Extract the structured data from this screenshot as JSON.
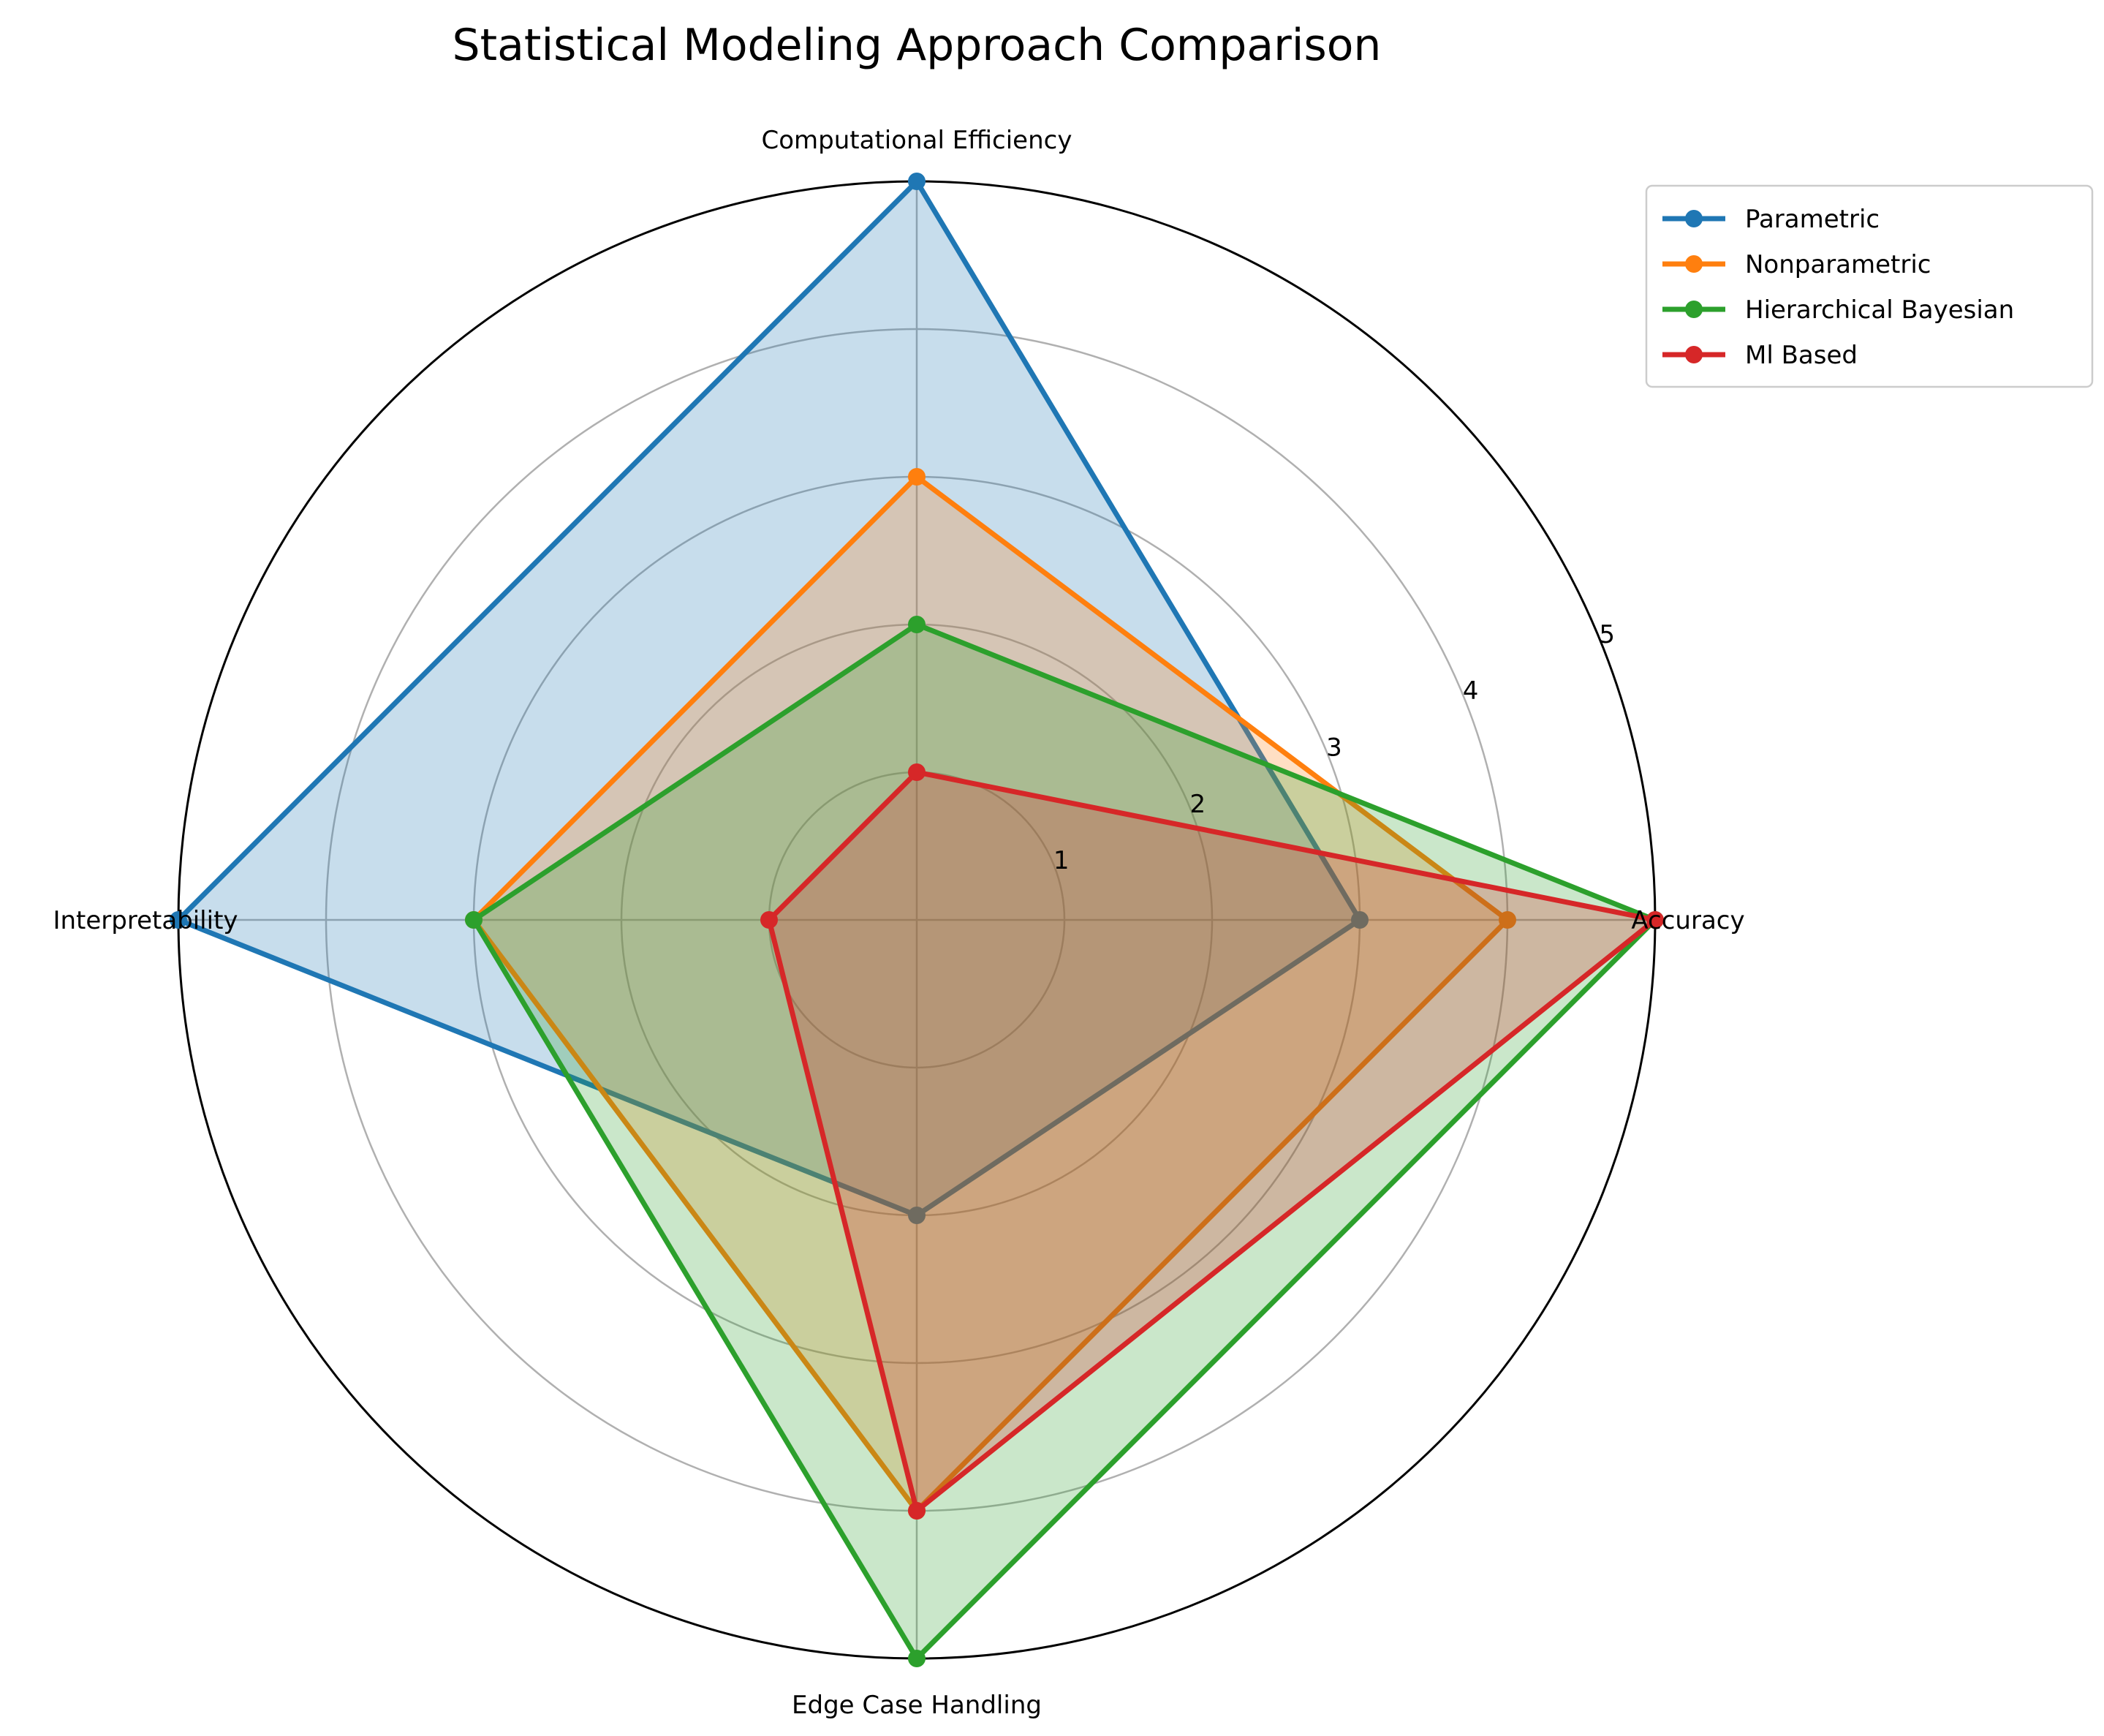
{
  "chart_data": {
    "type": "radar",
    "title": "Statistical Modeling Approach Comparison",
    "axes": [
      "Accuracy",
      "Computational Efficiency",
      "Interpretability",
      "Edge Case Handling"
    ],
    "rlim": [
      0,
      5
    ],
    "rticks": [
      "1",
      "2",
      "3",
      "4",
      "5"
    ],
    "grid": true,
    "legend_position": "upper-right",
    "series": [
      {
        "name": "Parametric",
        "values": [
          3,
          5,
          5,
          2
        ],
        "color": "#1f77b4"
      },
      {
        "name": "Nonparametric",
        "values": [
          4,
          3,
          3,
          4
        ],
        "color": "#ff7f0e"
      },
      {
        "name": "Hierarchical Bayesian",
        "values": [
          5,
          2,
          3,
          5
        ],
        "color": "#2ca02c"
      },
      {
        "name": "Ml Based",
        "values": [
          5,
          1,
          1,
          4
        ],
        "color": "#d62728"
      }
    ]
  }
}
